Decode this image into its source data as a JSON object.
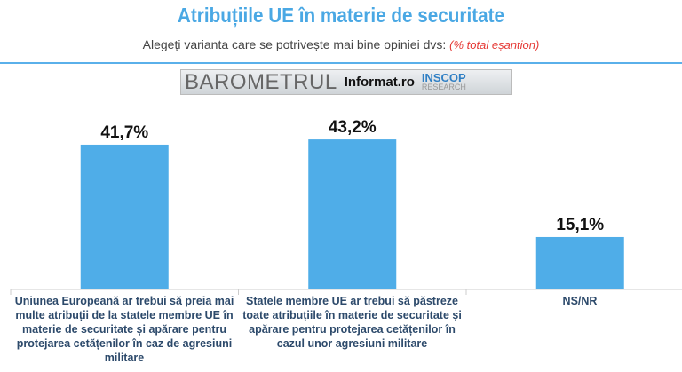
{
  "title": "Atribuțiile UE în materie de securitate",
  "subtitle": "Alegeți varianta care se potrivește mai bine opiniei dvs:",
  "subtitle_note": "(% total eșantion)",
  "logo": {
    "barometer": "BAROMETRUL",
    "informat": "Informat.ro",
    "inscop": "INSCOP",
    "research": "RESEARCH"
  },
  "colors": {
    "bar": "#4fade8",
    "title": "#4aa8e4",
    "note": "#e53935"
  },
  "chart_data": {
    "type": "bar",
    "categories": [
      "Uniunea Europeană ar trebui să preia mai multe atribuții de la statele membre UE în materie de securitate și apărare pentru protejarea cetățenilor în caz de agresiuni militare",
      "Statele membre UE ar trebui să păstreze toate atribuțiile în materie de securitate și apărare pentru protejarea cetățenilor în cazul unor agresiuni militare",
      "NS/NR"
    ],
    "values": [
      41.7,
      43.2,
      15.1
    ],
    "data_labels": [
      "41,7%",
      "43,2%",
      "15,1%"
    ],
    "ylim": [
      0,
      50
    ],
    "grid": false
  }
}
